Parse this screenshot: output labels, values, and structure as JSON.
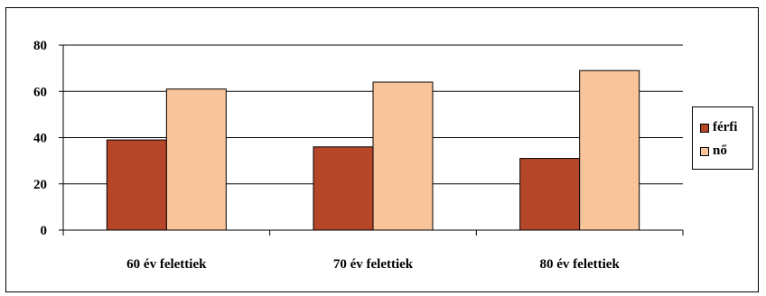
{
  "chart_data": {
    "type": "bar",
    "categories": [
      "60 év felettiek",
      "70 év felettiek",
      "80 év felettiek"
    ],
    "series": [
      {
        "name": "férfi",
        "values": [
          39,
          36,
          31
        ],
        "color": "#b5462a"
      },
      {
        "name": "nő",
        "values": [
          61,
          64,
          69
        ],
        "color": "#f9c499"
      }
    ],
    "ylim": [
      0,
      80
    ],
    "yticks": [
      0,
      20,
      40,
      60,
      80
    ],
    "grid": true,
    "legend": "right"
  }
}
